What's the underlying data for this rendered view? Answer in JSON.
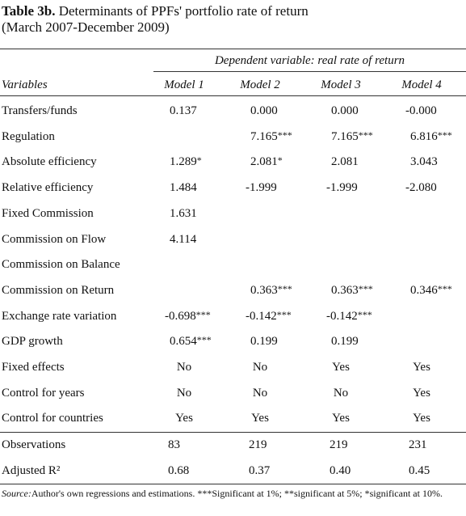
{
  "header": {
    "label": "Table 3b.",
    "title": "Determinants of PPFs' portfolio rate of return",
    "subtitle": "(March 2007-December 2009)"
  },
  "table": {
    "group_header": "Dependent variable: real rate of return",
    "columns": [
      "Variables",
      "Model 1",
      "Model 2",
      "Model 3",
      "Model 4"
    ],
    "rows": [
      [
        "Transfers/funds",
        {
          "text": "0.137"
        },
        {
          "text": "0.000"
        },
        {
          "text": "0.000"
        },
        {
          "text": "-0.000"
        }
      ],
      [
        "Regulation",
        null,
        {
          "text": "7.165",
          "sig": "***"
        },
        {
          "text": "7.165",
          "sig": "***"
        },
        {
          "text": "6.816",
          "sig": "***"
        }
      ],
      [
        "Absolute efficiency",
        {
          "text": "1.289",
          "sig": "*"
        },
        {
          "text": "2.081",
          "sig": "*"
        },
        {
          "text": "2.081"
        },
        {
          "text": "3.043"
        }
      ],
      [
        "Relative efficiency",
        {
          "text": "1.484"
        },
        {
          "text": "-1.999"
        },
        {
          "text": "-1.999"
        },
        {
          "text": "-2.080"
        }
      ],
      [
        "Fixed Commission",
        {
          "text": "1.631"
        },
        null,
        null,
        null
      ],
      [
        "Commission on Flow",
        {
          "text": "4.114"
        },
        null,
        null,
        null
      ],
      [
        "Commission on Balance",
        null,
        null,
        null,
        null
      ],
      [
        "Commission on Return",
        null,
        {
          "text": "0.363",
          "sig": "***"
        },
        {
          "text": "0.363",
          "sig": "***"
        },
        {
          "text": "0.346",
          "sig": "***"
        }
      ],
      [
        "Exchange rate variation",
        {
          "text": "-0.698",
          "sig": "***"
        },
        {
          "text": "-0.142",
          "sig": "***"
        },
        {
          "text": "-0.142",
          "sig": "***"
        },
        null
      ],
      [
        "GDP growth",
        {
          "text": "0.654",
          "sig": "***"
        },
        {
          "text": "0.199"
        },
        {
          "text": "0.199"
        },
        null
      ],
      [
        "Fixed effects",
        {
          "text": "No"
        },
        {
          "text": "No"
        },
        {
          "text": "Yes"
        },
        {
          "text": "Yes"
        }
      ],
      [
        "Control for years",
        {
          "text": "No"
        },
        {
          "text": "No"
        },
        {
          "text": "No"
        },
        {
          "text": "Yes"
        }
      ],
      [
        "Control for countries",
        {
          "text": "Yes"
        },
        {
          "text": "Yes"
        },
        {
          "text": "Yes"
        },
        {
          "text": "Yes"
        }
      ]
    ],
    "stats": [
      [
        "Observations",
        {
          "text": "83"
        },
        {
          "text": "219"
        },
        {
          "text": "219"
        },
        {
          "text": "231"
        }
      ],
      [
        "Adjusted R²",
        {
          "text": "0.68"
        },
        {
          "text": "0.37"
        },
        {
          "text": "0.40"
        },
        {
          "text": "0.45"
        }
      ]
    ]
  },
  "source": {
    "label": "Source:",
    "text": "Author's own regressions and estimations. ***Significant at 1%; **significant at 5%; *significant at 10%."
  }
}
